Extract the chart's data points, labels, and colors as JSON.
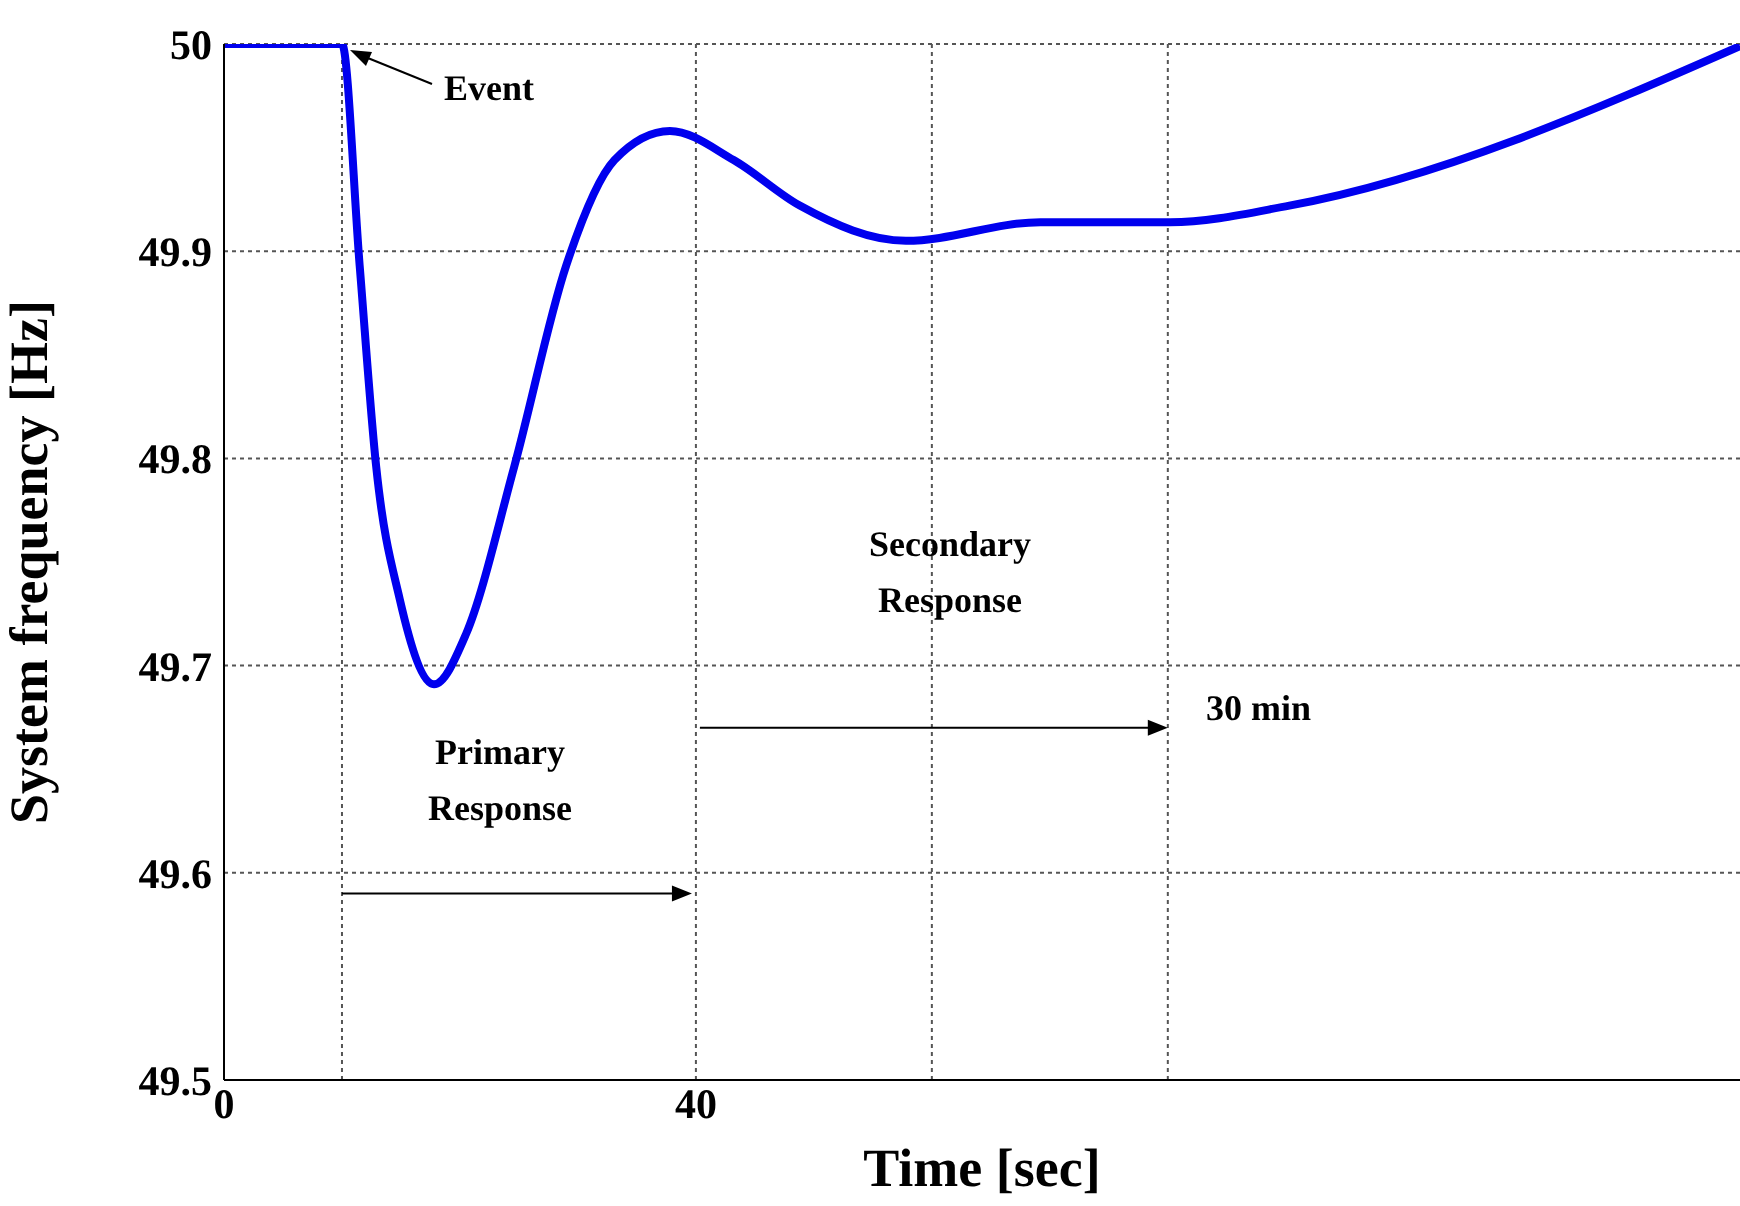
{
  "chart_data": {
    "type": "line",
    "xlabel": "Time [sec]",
    "ylabel": "System frequency [Hz]",
    "xlim": [
      0,
      128.5
    ],
    "xticks": [
      0,
      {
        "value": 10,
        "label": null
      },
      40,
      {
        "value": 60,
        "label": null
      },
      {
        "value": 80,
        "label": null
      }
    ],
    "ylim": [
      49.5,
      50
    ],
    "yticks": [
      49.5,
      49.6,
      49.7,
      49.8,
      49.9,
      50
    ],
    "grid": true,
    "marker": "none",
    "line_style": "solid",
    "series": [
      {
        "color": "#0000ee",
        "x": [
          0,
          10,
          11.5,
          12.9,
          14.9,
          17.8,
          20.5,
          24.6,
          29.0,
          33.1,
          37.8,
          43.2,
          48.8,
          57.8,
          69.2,
          80.2,
          90.3,
          128.5
        ],
        "values": [
          50,
          50,
          49.893,
          49.796,
          49.732,
          49.691,
          49.715,
          49.796,
          49.893,
          49.944,
          49.958,
          49.944,
          49.922,
          49.905,
          49.914,
          49.914,
          49.922,
          49.999
        ]
      }
    ],
    "annotations": [
      {
        "text": "Event",
        "x": 10,
        "y": 50
      },
      "Primary Response",
      "Secondary Response",
      "30 min"
    ]
  }
}
